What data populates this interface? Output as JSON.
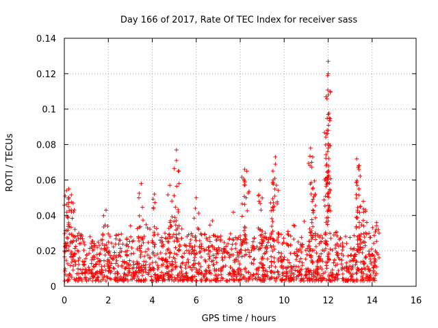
{
  "chart_data": {
    "type": "scatter",
    "title": "Day 166 of 2017, Rate Of TEC Index for receiver sass",
    "xlabel": "GPS time / hours",
    "ylabel": "ROTI / TECUs",
    "xlim": [
      0,
      16
    ],
    "ylim": [
      0,
      0.14
    ],
    "xticks": [
      "0",
      "2",
      "4",
      "6",
      "8",
      "10",
      "12",
      "14",
      "16"
    ],
    "yticks": [
      "0",
      "0.02",
      "0.04",
      "0.06",
      "0.08",
      "0.1",
      "0.12",
      "0.14"
    ],
    "grid": true,
    "marker": "+",
    "color": "#ff0000",
    "data_range_x": [
      0,
      14.2
    ],
    "series": [
      {
        "name": "ROTI",
        "notable_points": [
          {
            "x": 0.1,
            "y": 0.054
          },
          {
            "x": 0.2,
            "y": 0.055
          },
          {
            "x": 0.2,
            "y": 0.05
          },
          {
            "x": 0.4,
            "y": 0.047
          },
          {
            "x": 1.9,
            "y": 0.043
          },
          {
            "x": 3.5,
            "y": 0.058
          },
          {
            "x": 4.1,
            "y": 0.052
          },
          {
            "x": 4.8,
            "y": 0.057
          },
          {
            "x": 5.1,
            "y": 0.077
          },
          {
            "x": 5.1,
            "y": 0.071
          },
          {
            "x": 6.0,
            "y": 0.05
          },
          {
            "x": 8.2,
            "y": 0.066
          },
          {
            "x": 8.3,
            "y": 0.065
          },
          {
            "x": 8.9,
            "y": 0.06
          },
          {
            "x": 9.6,
            "y": 0.073
          },
          {
            "x": 9.6,
            "y": 0.069
          },
          {
            "x": 9.5,
            "y": 0.06
          },
          {
            "x": 11.2,
            "y": 0.078
          },
          {
            "x": 11.3,
            "y": 0.073
          },
          {
            "x": 11.3,
            "y": 0.055
          },
          {
            "x": 11.9,
            "y": 0.107
          },
          {
            "x": 12.0,
            "y": 0.127
          },
          {
            "x": 12.0,
            "y": 0.12
          },
          {
            "x": 12.0,
            "y": 0.108
          },
          {
            "x": 12.0,
            "y": 0.097
          },
          {
            "x": 12.0,
            "y": 0.088
          },
          {
            "x": 12.0,
            "y": 0.078
          },
          {
            "x": 13.3,
            "y": 0.072
          },
          {
            "x": 13.4,
            "y": 0.066
          },
          {
            "x": 13.4,
            "y": 0.055
          },
          {
            "x": 13.6,
            "y": 0.048
          },
          {
            "x": 14.2,
            "y": 0.036
          }
        ],
        "dense_band": {
          "y_min": 0.003,
          "y_typical_max": 0.03
        }
      }
    ]
  }
}
